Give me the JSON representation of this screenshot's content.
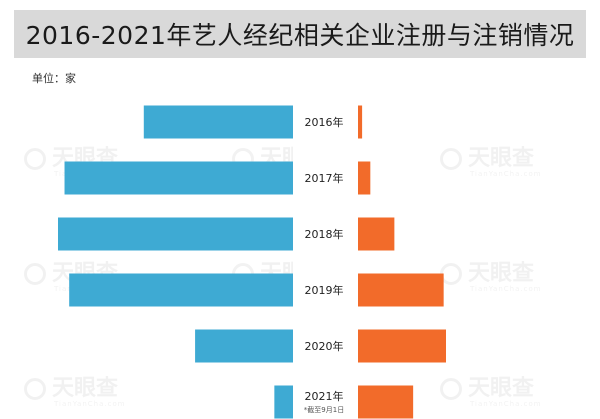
{
  "title": "2016-2021年艺人经纪相关企业注册与注销情况",
  "unit_label": "单位：家",
  "watermark": {
    "text": "天眼查",
    "sub": "TianYanCha.com"
  },
  "colors": {
    "registered": "#3eaad3",
    "cancelled": "#f26b2a",
    "label_box": "#ffffff"
  },
  "chart_data": {
    "type": "bar",
    "orientation": "horizontal-diverging",
    "categories": [
      "2016年",
      "2017年",
      "2018年",
      "2019年",
      "2020年",
      "2021年"
    ],
    "category_notes": [
      "",
      "",
      "",
      "",
      "",
      "*截至9月1日"
    ],
    "series": [
      {
        "values": [
          16000,
          24500,
          25200,
          24000,
          10500,
          2000
        ]
      },
      {
        "values": [
          350,
          1050,
          3100,
          7300,
          7500,
          4700
        ]
      }
    ],
    "legend": "none",
    "grid": false
  }
}
